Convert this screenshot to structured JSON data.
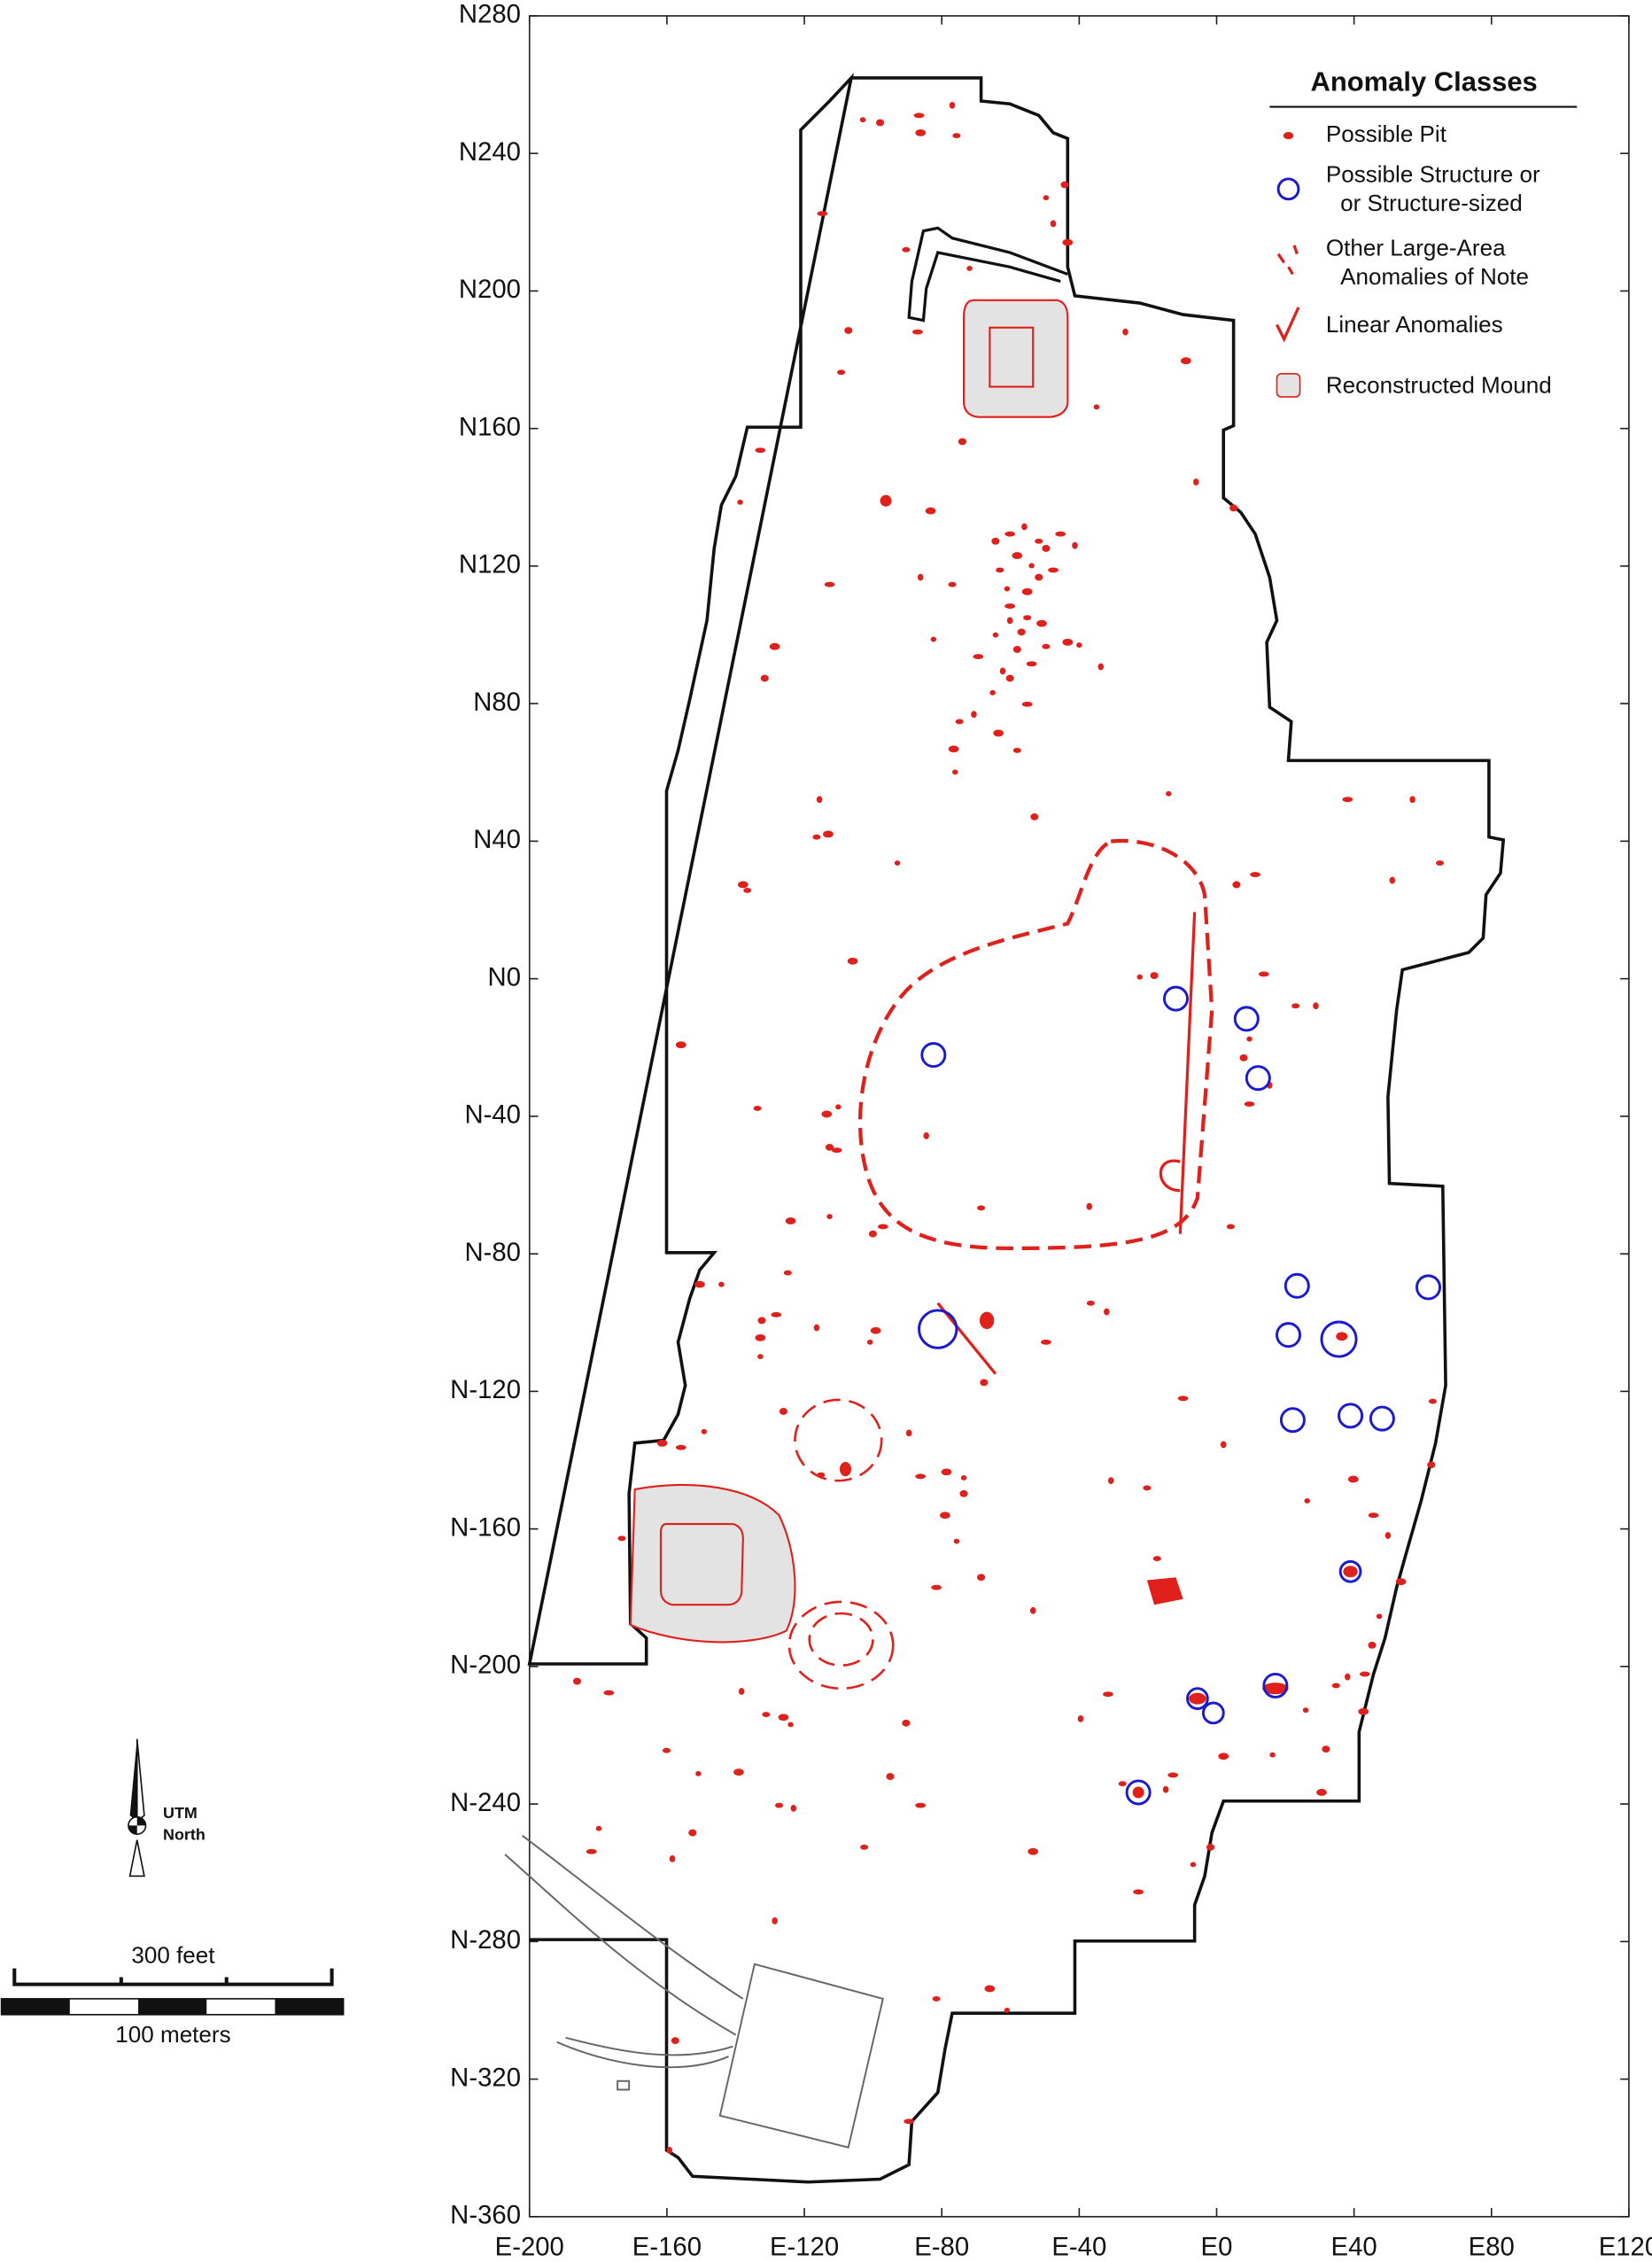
{
  "axes": {
    "xlim": [
      -200,
      120
    ],
    "ylim": [
      -360,
      280
    ],
    "xticks": [
      {
        "value": -200,
        "label": "E-200"
      },
      {
        "value": -160,
        "label": "E-160"
      },
      {
        "value": -120,
        "label": "E-120"
      },
      {
        "value": -80,
        "label": "E-80"
      },
      {
        "value": -40,
        "label": "E-40"
      },
      {
        "value": 0,
        "label": "E0"
      },
      {
        "value": 40,
        "label": "E40"
      },
      {
        "value": 80,
        "label": "E80"
      },
      {
        "value": 120,
        "label": "E120"
      }
    ],
    "yticks": [
      {
        "value": 280,
        "label": "N280"
      },
      {
        "value": 240,
        "label": "N240"
      },
      {
        "value": 200,
        "label": "N200"
      },
      {
        "value": 160,
        "label": "N160"
      },
      {
        "value": 120,
        "label": "N120"
      },
      {
        "value": 80,
        "label": "N80"
      },
      {
        "value": 40,
        "label": "N40"
      },
      {
        "value": 0,
        "label": "N0"
      },
      {
        "value": -40,
        "label": "N-40"
      },
      {
        "value": -80,
        "label": "N-80"
      },
      {
        "value": -120,
        "label": "N-120"
      },
      {
        "value": -160,
        "label": "N-160"
      },
      {
        "value": -200,
        "label": "N-200"
      },
      {
        "value": -240,
        "label": "N-240"
      },
      {
        "value": -280,
        "label": "N-280"
      },
      {
        "value": -320,
        "label": "N-320"
      },
      {
        "value": -360,
        "label": "N-360"
      }
    ]
  },
  "legend": {
    "title": "Anomaly Classes",
    "items": [
      {
        "lines": [
          "Possible Pit"
        ]
      },
      {
        "lines": [
          "Possible Structure or",
          "or Structure-sized"
        ]
      },
      {
        "lines": [
          "Other Large-Area",
          "Anomalies of Note"
        ]
      },
      {
        "lines": [
          "Linear Anomalies"
        ]
      },
      {
        "lines": [
          "Reconstructed Mound"
        ]
      }
    ]
  },
  "north_arrow": {
    "lines": [
      "UTM",
      "North"
    ]
  },
  "scale_bar": {
    "feet_label": "300 feet",
    "meters_label": "100 meters"
  }
}
